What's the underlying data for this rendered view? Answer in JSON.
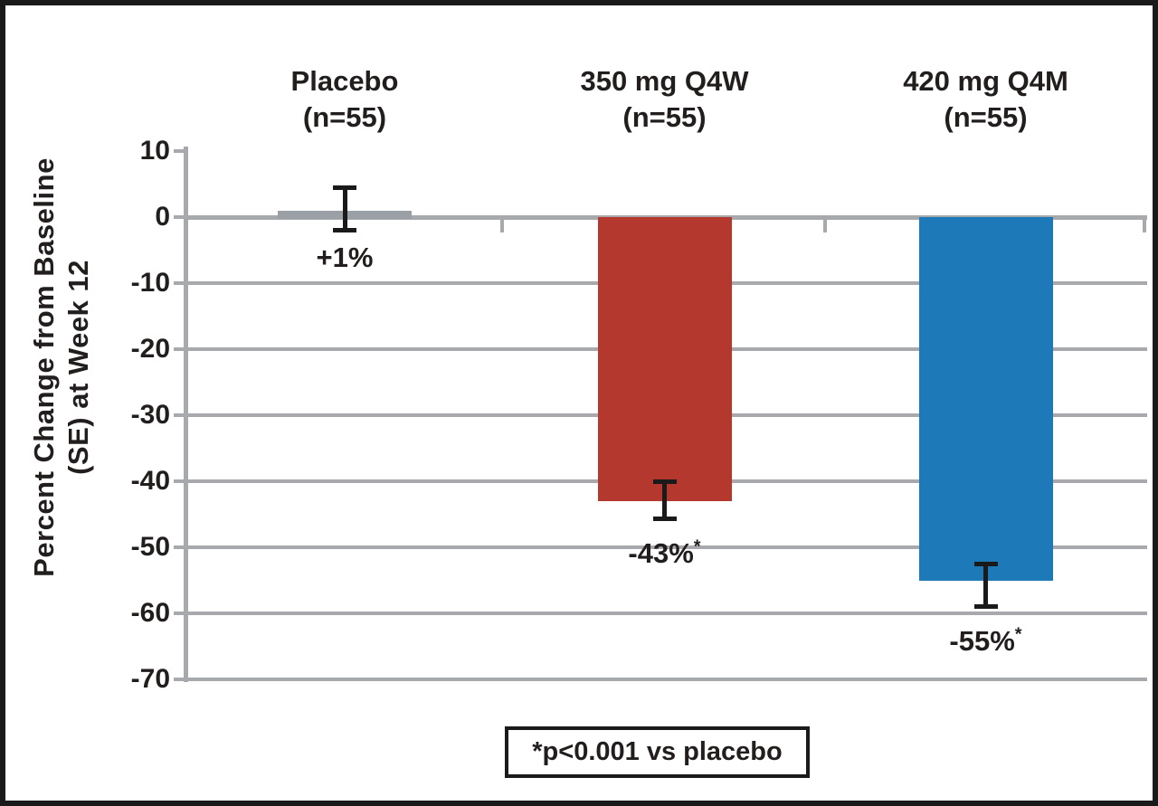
{
  "chart_data": {
    "type": "bar",
    "title": "",
    "ylabel_line1": "Percent Change from Baseline",
    "ylabel_line2": "(SE) at Week 12",
    "ylim": [
      -70,
      10
    ],
    "yticks": [
      10,
      0,
      -10,
      -20,
      -30,
      -40,
      -50,
      -60,
      -70
    ],
    "grid": "horizontal gray gridlines at 0 through -70; no gridline at +10",
    "legend_position": "none",
    "categories": [
      {
        "group": "Placebo",
        "n_label": "(n=55)",
        "value": 1,
        "value_label": "+1%",
        "sig_marker": "",
        "error_high": 4.5,
        "error_low": -2,
        "color": "#9aa0a5"
      },
      {
        "group": "350 mg Q4W",
        "n_label": "(n=55)",
        "value": -43,
        "value_label": "-43%",
        "sig_marker": "*",
        "error_high": -40,
        "error_low": -45.7,
        "color": "#b5382e"
      },
      {
        "group": "420 mg Q4M",
        "n_label": "(n=55)",
        "value": -55,
        "value_label": "-55%",
        "sig_marker": "*",
        "error_high": -52.5,
        "error_low": -59,
        "color": "#1d79b8"
      }
    ],
    "footnote": "*p<0.001 vs placebo"
  },
  "colors": {
    "axis_gray": "#a7a9ac",
    "error_bar_black": "#1a1a1a",
    "frame_black": "#1a1a1a",
    "text": "#211e1d",
    "background": "#ffffff"
  }
}
